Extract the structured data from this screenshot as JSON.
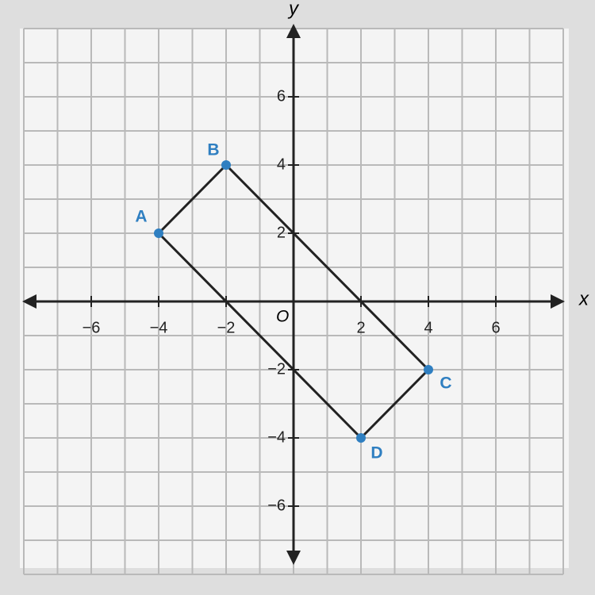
{
  "chart_data": {
    "type": "polygon",
    "x_label": "x",
    "y_label": "y",
    "origin_label": "O",
    "xlim": [
      -8,
      8
    ],
    "ylim": [
      -8,
      8
    ],
    "xticks": [
      {
        "value": -6,
        "label": "−6"
      },
      {
        "value": -4,
        "label": "−4"
      },
      {
        "value": -2,
        "label": "−2"
      },
      2,
      4,
      6
    ],
    "yticks": [
      {
        "value": -6,
        "label": "−6"
      },
      {
        "value": -4,
        "label": "−4"
      },
      {
        "value": -2,
        "label": "−2"
      },
      2,
      4,
      6
    ],
    "grid": true,
    "labels": [
      "A",
      "B",
      "C",
      "D"
    ],
    "x": [
      -4,
      -2,
      4,
      2
    ],
    "values": [
      2,
      4,
      -2,
      -4
    ],
    "color": "#2f7fc1",
    "line_color": "#222222"
  }
}
